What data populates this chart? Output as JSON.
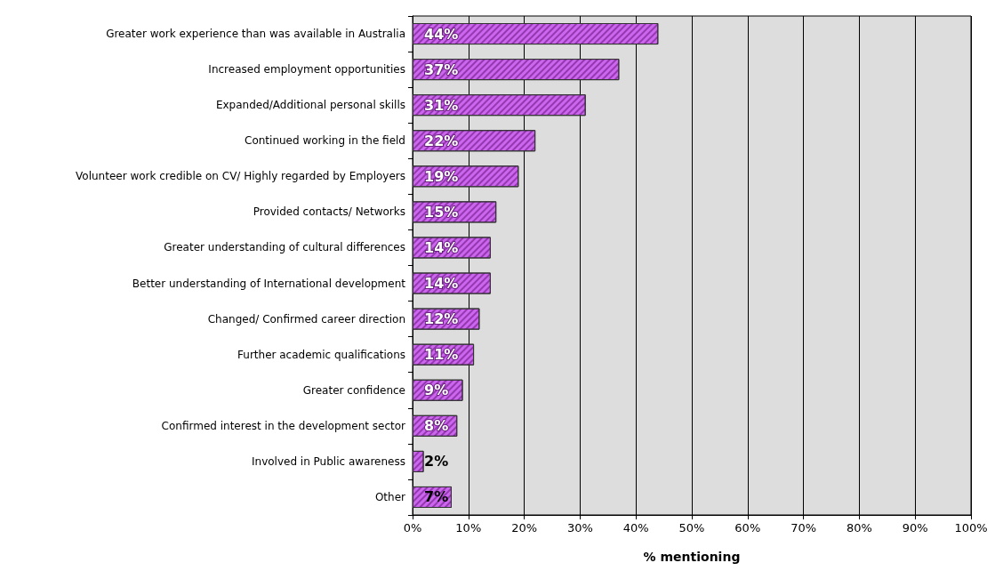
{
  "chart_data": {
    "type": "bar",
    "orientation": "horizontal",
    "xlabel": "% mentioning",
    "categories": [
      "Greater work experience than was available in Australia",
      "Increased employment opportunities",
      "Expanded/Additional personal skills",
      "Continued working in the field",
      "Volunteer work credible on CV/ Highly regarded by Employers",
      "Provided contacts/ Networks",
      "Greater understanding of cultural differences",
      "Better understanding of International development",
      "Changed/ Confirmed career direction",
      "Further academic qualifications",
      "Greater confidence",
      "Confirmed interest in the development sector",
      "Involved in Public awareness",
      "Other"
    ],
    "values": [
      44,
      37,
      31,
      22,
      19,
      15,
      14,
      14,
      12,
      11,
      9,
      8,
      2,
      7
    ],
    "value_labels": [
      "44%",
      "37%",
      "31%",
      "22%",
      "19%",
      "15%",
      "14%",
      "14%",
      "12%",
      "11%",
      "9%",
      "8%",
      "2%",
      "7%"
    ],
    "color": "#cc66ee",
    "xlim": [
      0,
      100
    ],
    "xticks": [
      {
        "value": 0,
        "label": "0%"
      },
      {
        "value": 10,
        "label": "10%"
      },
      {
        "value": 20,
        "label": "20%"
      },
      {
        "value": 30,
        "label": "30%"
      },
      {
        "value": 40,
        "label": "40%"
      },
      {
        "value": 50,
        "label": "50%"
      },
      {
        "value": 60,
        "label": "60%"
      },
      {
        "value": 70,
        "label": "70%"
      },
      {
        "value": 80,
        "label": "80%"
      },
      {
        "value": 90,
        "label": "90%"
      },
      {
        "value": 100,
        "label": "100%"
      }
    ],
    "grid": "x"
  }
}
